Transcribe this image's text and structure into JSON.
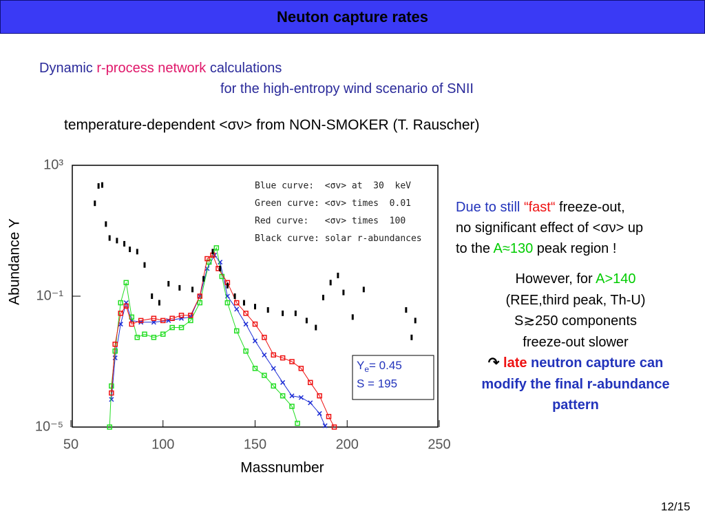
{
  "slide": {
    "title": "Neuton capture rates",
    "heading": [
      [
        {
          "text": "Dynamic ",
          "color": "#2a2a9a"
        },
        {
          "text": "r-process network",
          "color": "#e0176a"
        },
        {
          "text": " calculations",
          "color": "#2a2a9a"
        }
      ],
      [
        {
          "text": "for the high-entropy wind scenario of SNII",
          "color": "#2a2a9a"
        }
      ]
    ],
    "note": "temperature-dependent <σν> from NON-SMOKER (T. Rauscher)",
    "right": [
      [
        {
          "text": "Due to still ",
          "color": "#2233bb"
        },
        {
          "text": "“fast“",
          "color": "#ee1111"
        },
        {
          "text": " freeze-out,",
          "color": "#000000"
        }
      ],
      [
        {
          "text": "no significant effect of <σν> up",
          "color": "#000000"
        }
      ],
      [
        {
          "text": "to the ",
          "color": "#000000"
        },
        {
          "text": "A≈130",
          "color": "#00cc00"
        },
        {
          "text": " peak region !",
          "color": "#000000"
        }
      ]
    ],
    "center": [
      [
        {
          "text": "However, for ",
          "color": "#000000"
        },
        {
          "text": "A>140",
          "color": "#00cc00"
        }
      ],
      [
        {
          "text": "(REE,third peak, Th-U)",
          "color": "#000000"
        }
      ],
      [
        {
          "text": "S≳250 components",
          "color": "#000000"
        }
      ],
      [
        {
          "text": "freeze-out slower",
          "color": "#000000"
        }
      ],
      [
        {
          "text": "↷ ",
          "color": "#000000",
          "bold": true
        },
        {
          "text": "late",
          "color": "#ee1111",
          "bold": true
        },
        {
          "text": " neutron capture can",
          "color": "#2233bb",
          "bold": true
        }
      ],
      [
        {
          "text": "modify the final r-abundance",
          "color": "#2233bb",
          "bold": true
        }
      ],
      [
        {
          "text": "pattern",
          "color": "#2233bb",
          "bold": true
        }
      ]
    ],
    "page": "12/15"
  },
  "chart_data": {
    "type": "scatter",
    "x_label": "Massnumber",
    "y_label": "Abundance Y",
    "xlim": [
      50,
      250
    ],
    "ylim": [
      1e-05,
      1000
    ],
    "log_y": true,
    "xticks": [
      50,
      100,
      150,
      200,
      250
    ],
    "yticks": [
      {
        "value": 1e-05,
        "label": "10⁻⁵"
      },
      {
        "value": 0.1,
        "label": "10⁻¹"
      },
      {
        "value": 1000,
        "label": "10³"
      }
    ],
    "inset": [
      {
        "base": "Y",
        "sub": "e",
        "text": "= 0.45"
      },
      "S = 195"
    ],
    "series": [
      {
        "name": "Blue curve:  <σv> at  30  keV",
        "color": "#1f2fd6",
        "marker": "x",
        "line": true,
        "x": [
          72,
          74,
          77,
          80,
          83,
          88,
          95,
          103,
          110,
          115,
          120,
          124,
          128,
          131,
          135,
          140,
          145,
          150,
          155,
          160,
          165,
          170,
          175,
          180,
          185,
          188
        ],
        "values": [
          7e-05,
          0.0013,
          0.014,
          0.063,
          0.018,
          0.016,
          0.016,
          0.018,
          0.021,
          0.023,
          0.1,
          0.7,
          1.8,
          1.1,
          0.1,
          0.04,
          0.014,
          0.0043,
          0.0016,
          0.00062,
          0.00023,
          9e-05,
          8e-05,
          5.5e-05,
          2.6e-05,
          1.1e-05
        ]
      },
      {
        "name": "Green curve: <σv> times  0.01",
        "color": "#22dd22",
        "marker": "square",
        "line": true,
        "x": [
          71,
          72,
          74,
          77,
          80,
          83,
          86,
          90,
          95,
          100,
          105,
          110,
          115,
          120,
          125,
          129,
          132,
          135,
          140,
          145,
          150,
          155,
          160,
          165,
          170,
          173
        ],
        "values": [
          1e-05,
          0.00018,
          0.0021,
          0.063,
          0.26,
          0.023,
          0.0055,
          0.0069,
          0.0055,
          0.0069,
          0.011,
          0.011,
          0.018,
          0.063,
          1.1,
          3,
          0.4,
          0.063,
          0.0087,
          0.0021,
          0.00062,
          0.00038,
          0.00018,
          9e-05,
          4.3e-05,
          1.3e-05
        ]
      },
      {
        "name": "Red curve:   <σv> times  100",
        "color": "#ee1111",
        "marker": "square",
        "line": true,
        "x": [
          72,
          74,
          77,
          80,
          83,
          88,
          95,
          100,
          105,
          110,
          115,
          120,
          124,
          127,
          130,
          135,
          140,
          145,
          150,
          155,
          160,
          165,
          170,
          175,
          180,
          185,
          190,
          193
        ],
        "values": [
          0.00011,
          0.0034,
          0.03,
          0.05,
          0.014,
          0.018,
          0.021,
          0.018,
          0.021,
          0.026,
          0.026,
          0.1,
          1.4,
          1.8,
          0.7,
          0.26,
          0.063,
          0.03,
          0.014,
          0.0055,
          0.0016,
          0.0013,
          0.001,
          0.00062,
          0.00023,
          9e-05,
          2.1e-05,
          1e-05
        ]
      },
      {
        "name": "Black curve: solar r-abundances",
        "color": "#000000",
        "marker": "dot",
        "line": false,
        "x": [
          63,
          65,
          67,
          69,
          71,
          75,
          79,
          82,
          86,
          90,
          94,
          98,
          103,
          109,
          116,
          122,
          127,
          131,
          135,
          139,
          144,
          150,
          157,
          165,
          172,
          178,
          183,
          187,
          191,
          195,
          198,
          203,
          209,
          232,
          235,
          237
        ],
        "values": [
          69,
          234,
          250,
          16,
          6,
          5,
          4,
          2.7,
          2.3,
          0.9,
          0.1,
          0.063,
          0.24,
          0.18,
          0.16,
          0.34,
          2.3,
          0.7,
          0.21,
          0.1,
          0.063,
          0.048,
          0.038,
          0.03,
          0.03,
          0.018,
          0.011,
          0.091,
          0.26,
          0.43,
          0.13,
          0.023,
          0.16,
          0.038,
          0.0055,
          0.018
        ]
      }
    ]
  }
}
